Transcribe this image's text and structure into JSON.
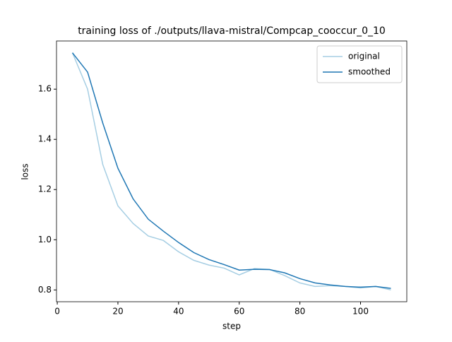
{
  "chart_data": {
    "type": "line",
    "title": "training loss of ./outputs/llava-mistral/Compcap_cooccur_0_10",
    "x_label": "step",
    "y_label": "loss",
    "x": [
      5,
      10,
      15,
      20,
      25,
      30,
      35,
      40,
      45,
      50,
      55,
      60,
      65,
      70,
      75,
      80,
      85,
      90,
      95,
      100,
      105,
      110
    ],
    "series": [
      {
        "name": "original",
        "color": "#a6cee3",
        "values": [
          1.745,
          1.6,
          1.3,
          1.135,
          1.065,
          1.015,
          0.997,
          0.952,
          0.918,
          0.899,
          0.887,
          0.86,
          0.885,
          0.882,
          0.857,
          0.828,
          0.814,
          0.817,
          0.814,
          0.808,
          0.814,
          0.8
        ]
      },
      {
        "name": "smoothed",
        "color": "#1f77b4",
        "values": [
          1.745,
          1.668,
          1.465,
          1.285,
          1.163,
          1.082,
          1.034,
          0.989,
          0.949,
          0.921,
          0.901,
          0.879,
          0.882,
          0.881,
          0.868,
          0.845,
          0.828,
          0.82,
          0.814,
          0.811,
          0.814,
          0.806
        ]
      }
    ],
    "xlim": [
      -0.25,
      115.25
    ],
    "ylim": [
      0.753,
      1.792
    ],
    "xticks": [
      0,
      20,
      40,
      60,
      80,
      100
    ],
    "yticks": [
      0.8,
      {
        "value": 1,
        "label": "1.0"
      },
      1.2,
      1.4,
      1.6
    ],
    "grid": false,
    "legend": "upper right"
  }
}
